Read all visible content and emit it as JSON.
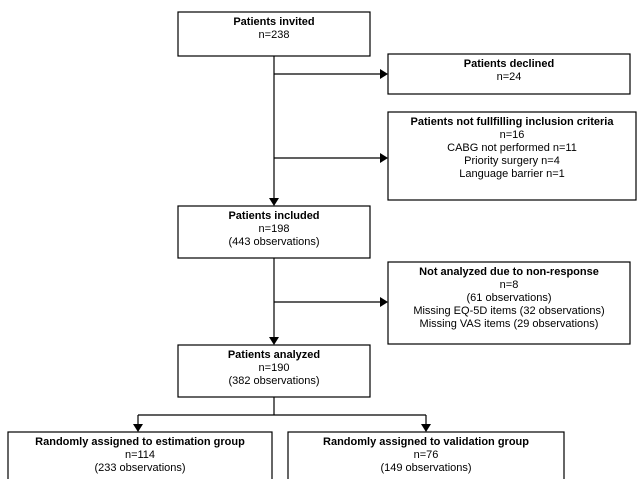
{
  "nodes": [
    {
      "title": "Patients invited",
      "lines": [
        "n=238"
      ]
    },
    {
      "title": "Patients declined",
      "lines": [
        "n=24"
      ]
    },
    {
      "title": "Patients not fullfilling inclusion criteria",
      "lines": [
        "n=16",
        "CABG not performed n=11",
        "Priority surgery n=4",
        "Language barrier n=1"
      ]
    },
    {
      "title": "Patients included",
      "lines": [
        "n=198",
        "(443 observations)"
      ]
    },
    {
      "title": "Not analyzed due to non-response",
      "lines": [
        "n=8",
        "(61 observations)",
        "Missing EQ-5D items (32 observations)",
        "Missing VAS items (29 observations)"
      ]
    },
    {
      "title": "Patients analyzed",
      "lines": [
        "n=190",
        "(382 observations)"
      ]
    },
    {
      "title": "Randomly assigned to estimation group",
      "lines": [
        "n=114",
        "(233 observations)"
      ]
    },
    {
      "title": "Randomly assigned to validation group",
      "lines": [
        "n=76",
        "(149 observations)"
      ]
    }
  ]
}
